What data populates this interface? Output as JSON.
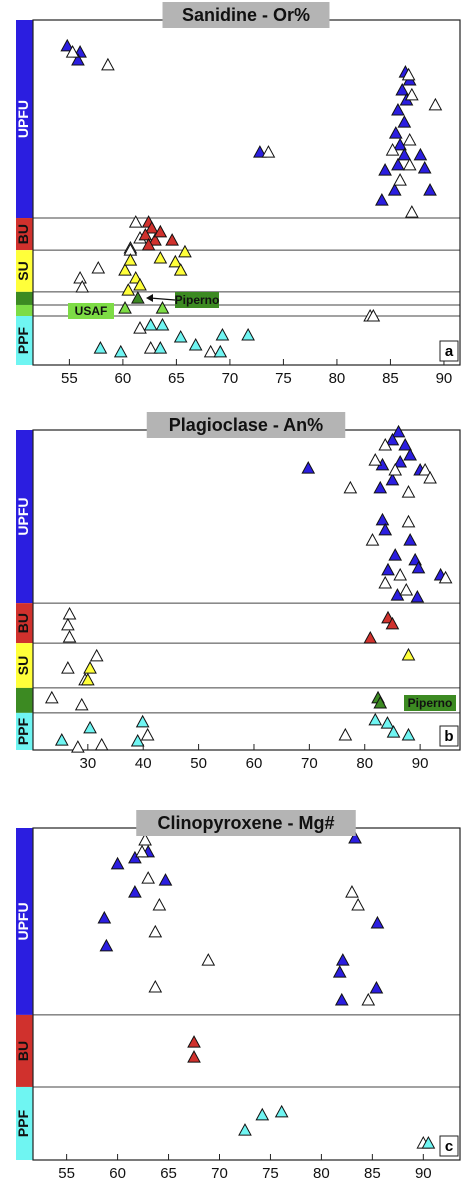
{
  "chart_data": [
    {
      "type": "scatter",
      "title": "Sanidine - Or%",
      "panel_label": "a",
      "annotations": [
        "Piperno",
        "USAF"
      ],
      "xlim": [
        51.6,
        91.5
      ],
      "xticks": [
        55,
        60,
        65,
        70,
        75,
        80,
        85,
        90
      ],
      "ylim": [
        0,
        100
      ],
      "units": [
        {
          "label": "UPFU",
          "color": "#2b1ee0",
          "from": 42.6,
          "to": 100
        },
        {
          "label": "BU",
          "color": "#d0312d",
          "from": 33.3,
          "to": 42.6
        },
        {
          "label": "SU",
          "color": "#ffff3a",
          "from": 21.2,
          "to": 33.3
        },
        {
          "color": "#3c8a22",
          "from": 17.4,
          "to": 21.2
        },
        {
          "color": "#7ddc45",
          "from": 14.2,
          "to": 17.4
        },
        {
          "label": "PPF",
          "color": "#6ff5f2",
          "from": 0,
          "to": 14.2
        }
      ],
      "series": [
        {
          "color": "#2b1ee0",
          "x": [
            54.8,
            56.0,
            55.8,
            72.8,
            86.4,
            86.8,
            86.1,
            86.5,
            85.7,
            86.3,
            85.5,
            85.9,
            86.3,
            85.7,
            84.5,
            87.8,
            88.2,
            88.7,
            84.2,
            85.4
          ],
          "y": [
            92.5,
            90.7,
            88.4,
            61.7,
            84.9,
            82.6,
            79.7,
            76.8,
            73.9,
            70.4,
            67.2,
            63.8,
            60.9,
            58.0,
            56.5,
            60.9,
            57.1,
            50.7,
            47.8,
            50.7
          ]
        },
        {
          "color": "#ffffff",
          "x": [
            55.3,
            58.6,
            73.6,
            86.7,
            89.2,
            87.0,
            85.2,
            86.8,
            85.9,
            87.0,
            86.8,
            61.2,
            61.6,
            60.7,
            57.7,
            56.0,
            56.2,
            60.7,
            83.1,
            83.4,
            61.6,
            62.6,
            68.2
          ],
          "y": [
            90.7,
            87.0,
            61.7,
            84.1,
            75.4,
            78.3,
            62.3,
            58.0,
            53.6,
            44.3,
            65.2,
            41.4,
            36.8,
            33.9,
            28.1,
            25.2,
            22.6,
            33.3,
            14.2,
            14.2,
            10.7,
            4.9,
            3.8
          ]
        },
        {
          "color": "#d0312d",
          "x": [
            62.4,
            62.7,
            62.1,
            63.0,
            62.4,
            64.6,
            63.5
          ],
          "y": [
            41.4,
            39.7,
            37.7,
            36.2,
            34.8,
            36.2,
            38.6
          ]
        },
        {
          "color": "#ffff3a",
          "x": [
            60.2,
            60.7,
            61.2,
            61.6,
            60.5,
            65.8,
            64.9,
            65.4,
            63.5
          ],
          "y": [
            27.5,
            30.4,
            25.2,
            23.2,
            21.7,
            32.8,
            29.9,
            27.5,
            31.0
          ]
        },
        {
          "color": "#3c8a22",
          "x": [
            61.4
          ],
          "y": [
            19.4
          ]
        },
        {
          "color": "#7ddc45",
          "x": [
            60.2,
            63.7
          ],
          "y": [
            16.5,
            16.5
          ]
        },
        {
          "color": "#6ff5f2",
          "x": [
            62.6,
            63.7,
            57.9,
            59.8,
            65.4,
            66.8,
            69.3,
            71.7,
            69.1,
            63.5
          ],
          "y": [
            11.6,
            11.6,
            4.9,
            3.8,
            8.1,
            5.8,
            8.7,
            8.7,
            3.8,
            4.9
          ]
        }
      ]
    },
    {
      "type": "scatter",
      "title": "Plagioclase - An%",
      "panel_label": "b",
      "annotations": [
        "Piperno"
      ],
      "xlim": [
        20.1,
        97.2
      ],
      "xticks": [
        30,
        40,
        50,
        60,
        70,
        80,
        90
      ],
      "ylim": [
        0,
        100
      ],
      "units": [
        {
          "label": "UPFU",
          "color": "#2b1ee0",
          "from": 45.9,
          "to": 100
        },
        {
          "label": "BU",
          "color": "#d0312d",
          "from": 33.4,
          "to": 45.9
        },
        {
          "label": "SU",
          "color": "#ffff3a",
          "from": 19.4,
          "to": 33.4
        },
        {
          "color": "#3c8a22",
          "from": 11.6,
          "to": 19.4
        },
        {
          "label": "PPF",
          "color": "#6ff5f2",
          "from": 0,
          "to": 11.6
        }
      ],
      "series": [
        {
          "color": "#2b1ee0",
          "x": [
            86.1,
            85.0,
            87.3,
            88.2,
            86.4,
            83.2,
            69.8,
            82.8,
            85.0,
            90.0,
            83.2,
            83.7,
            88.2,
            85.5,
            89.1,
            84.2,
            89.7,
            93.7,
            85.9,
            89.5
          ],
          "y": [
            99.4,
            96.9,
            95.3,
            92.2,
            90.0,
            89.1,
            88.1,
            81.9,
            84.4,
            87.5,
            71.9,
            68.8,
            65.6,
            60.9,
            59.4,
            56.3,
            56.9,
            54.7,
            48.4,
            47.8
          ]
        },
        {
          "color": "#ffffff",
          "x": [
            83.7,
            81.9,
            85.5,
            90.9,
            91.8,
            77.4,
            87.9,
            87.9,
            81.4,
            86.4,
            94.6,
            83.7,
            87.5,
            26.7,
            26.4,
            26.7,
            31.6,
            26.4,
            29.5,
            23.5,
            28.9,
            28.2,
            32.5,
            40.8,
            76.5
          ],
          "y": [
            95.3,
            90.6,
            87.5,
            87.5,
            85.0,
            81.9,
            80.6,
            71.3,
            65.6,
            54.7,
            53.8,
            52.2,
            50.0,
            42.5,
            39.1,
            35.3,
            29.4,
            25.6,
            21.9,
            16.3,
            14.1,
            0.9,
            1.6,
            4.7,
            4.7
          ]
        },
        {
          "color": "#d0312d",
          "x": [
            84.2,
            85.0,
            81.0
          ],
          "y": [
            41.3,
            39.4,
            35.0
          ]
        },
        {
          "color": "#ffff3a",
          "x": [
            87.9,
            30.4,
            30.0
          ],
          "y": [
            29.7,
            25.6,
            21.9
          ]
        },
        {
          "color": "#3c8a22",
          "x": [
            82.4,
            82.8
          ],
          "y": [
            16.3,
            14.7
          ]
        },
        {
          "color": "#6ff5f2",
          "x": [
            25.3,
            30.4,
            39.9,
            39.0,
            81.9,
            84.1,
            85.2,
            87.9
          ],
          "y": [
            3.1,
            6.9,
            8.8,
            2.8,
            9.4,
            8.4,
            5.6,
            4.7
          ]
        }
      ]
    },
    {
      "type": "scatter",
      "title": "Clinopyroxene - Mg#",
      "panel_label": "c",
      "annotations": [],
      "xlim": [
        51.7,
        93.6
      ],
      "xticks": [
        55,
        60,
        65,
        70,
        75,
        80,
        85,
        90
      ],
      "ylim": [
        0,
        100
      ],
      "units": [
        {
          "label": "UPFU",
          "color": "#2b1ee0",
          "from": 43.7,
          "to": 100
        },
        {
          "label": "BU",
          "color": "#d0312d",
          "from": 22.0,
          "to": 43.7
        },
        {
          "label": "PPF",
          "color": "#6ff5f2",
          "from": 0,
          "to": 22.0
        }
      ],
      "series": [
        {
          "color": "#2b1ee0",
          "x": [
            83.3,
            60.0,
            61.7,
            63.0,
            64.7,
            61.7,
            58.7,
            58.9,
            85.5,
            82.1,
            81.8,
            85.4,
            82.0
          ],
          "y": [
            97.0,
            89.2,
            91.0,
            92.8,
            84.3,
            80.7,
            72.9,
            64.5,
            71.4,
            60.2,
            56.6,
            51.8,
            48.2
          ]
        },
        {
          "color": "#ffffff",
          "x": [
            62.7,
            62.4,
            63.0,
            83.0,
            83.6,
            64.1,
            63.7,
            68.9,
            63.7,
            84.6,
            90.0
          ],
          "y": [
            96.4,
            92.8,
            84.9,
            80.7,
            76.8,
            76.8,
            68.7,
            60.2,
            52.1,
            48.2,
            5.1
          ]
        },
        {
          "color": "#d0312d",
          "x": [
            67.5,
            67.5
          ],
          "y": [
            35.5,
            31.0
          ]
        },
        {
          "color": "#6ff5f2",
          "x": [
            74.2,
            76.1,
            72.5,
            90.5
          ],
          "y": [
            13.6,
            14.5,
            9.0,
            5.1
          ]
        }
      ]
    }
  ]
}
